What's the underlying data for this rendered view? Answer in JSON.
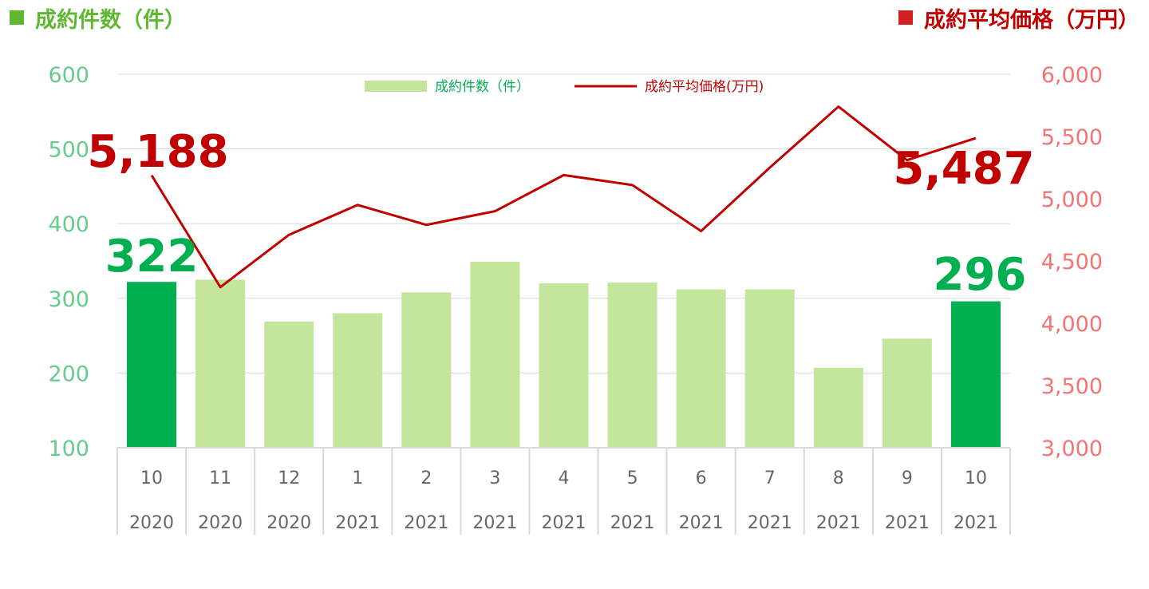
{
  "header": {
    "left_title": "成約件数（件）",
    "right_title": "成約平均価格（万円）"
  },
  "colors": {
    "bar_highlight": "#00b050",
    "bar_normal": "#c3e59c",
    "line": "#c00000",
    "left_axis": "#66cc8e",
    "right_axis": "#f47474",
    "left_header": "#5fb832",
    "right_header": "#c00000",
    "grid": "#d9d9d9"
  },
  "chart_data": {
    "type": "bar",
    "categories": [
      {
        "month": "10",
        "year": "2020"
      },
      {
        "month": "11",
        "year": "2020"
      },
      {
        "month": "12",
        "year": "2020"
      },
      {
        "month": "1",
        "year": "2021"
      },
      {
        "month": "2",
        "year": "2021"
      },
      {
        "month": "3",
        "year": "2021"
      },
      {
        "month": "4",
        "year": "2021"
      },
      {
        "month": "5",
        "year": "2021"
      },
      {
        "month": "6",
        "year": "2021"
      },
      {
        "month": "7",
        "year": "2021"
      },
      {
        "month": "8",
        "year": "2021"
      },
      {
        "month": "9",
        "year": "2021"
      },
      {
        "month": "10",
        "year": "2021"
      }
    ],
    "series": [
      {
        "name": "成約件数（件）",
        "type": "bar",
        "axis": "left",
        "values": [
          322,
          325,
          269,
          280,
          308,
          349,
          320,
          321,
          312,
          312,
          207,
          246,
          296
        ],
        "highlight_indices": [
          0,
          12
        ]
      },
      {
        "name": "成約平均価格(万円)",
        "type": "line",
        "axis": "right",
        "values": [
          5188,
          4290,
          4710,
          4950,
          4790,
          4900,
          5190,
          5110,
          4740,
          5250,
          5740,
          5310,
          5487
        ]
      }
    ],
    "y_left": {
      "min": 100,
      "max": 600,
      "ticks": [
        "600",
        "500",
        "400",
        "300",
        "200",
        "100"
      ]
    },
    "y_right": {
      "min": 3000,
      "max": 6000,
      "ticks": [
        "6,000",
        "5,500",
        "5,000",
        "4,500",
        "4,000",
        "3,500",
        "3,000"
      ]
    },
    "data_labels": [
      {
        "series": 0,
        "index": 0,
        "text": "322"
      },
      {
        "series": 0,
        "index": 12,
        "text": "296"
      },
      {
        "series": 1,
        "index": 0,
        "text": "5,188"
      },
      {
        "series": 1,
        "index": 12,
        "text": "5,487"
      }
    ],
    "grid": true,
    "legend_position": "top-center"
  }
}
